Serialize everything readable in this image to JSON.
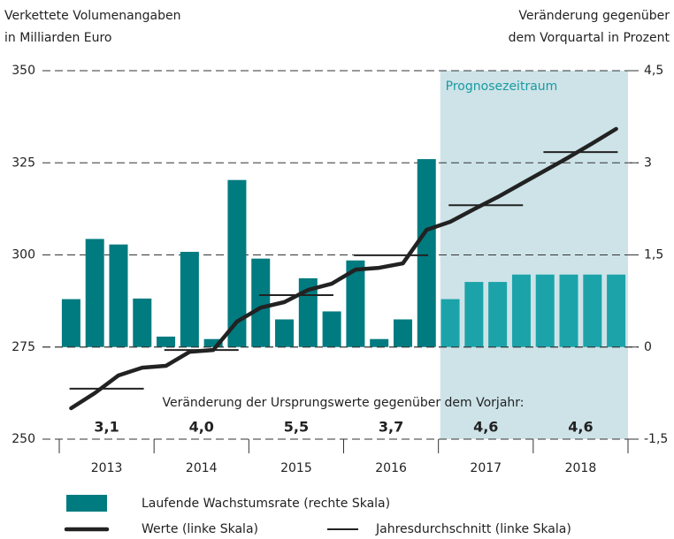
{
  "chart_data": {
    "type": "combo",
    "y_label": [
      "Verkettete Volumenangaben",
      "in Milliarden Euro"
    ],
    "y2_label": [
      "Veränderung gegenüber",
      "dem Vorquartal in Prozent"
    ],
    "ylim": [
      250,
      350
    ],
    "yticks": [
      250,
      275,
      300,
      325,
      350
    ],
    "y2lim": [
      -1.5,
      4.5
    ],
    "y2ticks": [
      {
        "value": -1.5,
        "label": "-1,5"
      },
      0,
      {
        "value": 1.5,
        "label": "1,5"
      },
      3,
      {
        "value": 4.5,
        "label": "4,5"
      }
    ],
    "grid": true,
    "years": [
      "2013",
      "2014",
      "2015",
      "2016",
      "2017",
      "2018"
    ],
    "forecast": {
      "label": "Prognosezeitraum",
      "start": "2017",
      "color": "#cde3e8"
    },
    "series": [
      {
        "name": "Laufende Wachstumsrate (rechte Skala)",
        "type": "bar",
        "axis": "y2",
        "color": "#007b80",
        "forecast_color": "#1ca3aa",
        "values": [
          0.78,
          1.76,
          1.67,
          0.79,
          0.17,
          1.55,
          0.13,
          2.72,
          1.44,
          0.45,
          1.12,
          0.58,
          1.41,
          0.13,
          0.45,
          3.06,
          0.78,
          1.06,
          1.06,
          1.18,
          1.18,
          1.18,
          1.18,
          1.18
        ]
      },
      {
        "name": "Werte (linke Skala)",
        "type": "line",
        "color": "#222222",
        "values": [
          258.4,
          262.5,
          267.3,
          269.4,
          269.9,
          273.7,
          274.2,
          281.9,
          285.7,
          287.2,
          290.5,
          292.2,
          296.0,
          296.5,
          297.7,
          306.8,
          309.0,
          312.4,
          315.7,
          319.3,
          322.9,
          326.5,
          330.3,
          334.2
        ]
      },
      {
        "name": "Jahresdurchschnitt (linke Skala)",
        "type": "step",
        "color": "#222222",
        "values": [
          263.7,
          274.2,
          289.1,
          299.9,
          313.5,
          327.9
        ]
      }
    ],
    "annual_change": {
      "title": "Veränderung der Ursprungswerte gegenüber dem Vorjahr:",
      "values": [
        3.1,
        4.0,
        5.5,
        3.7,
        4.6,
        4.6
      ],
      "value_labels": [
        "3,1",
        "4,0",
        "5,5",
        "3,7",
        "4,6",
        "4,6"
      ]
    }
  }
}
